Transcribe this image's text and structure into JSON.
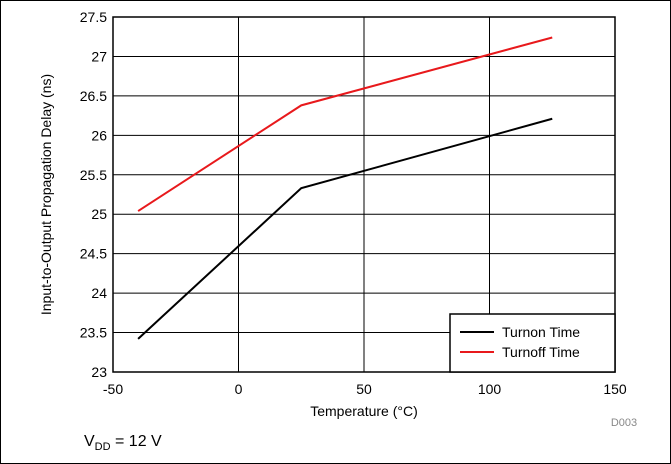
{
  "chart_data": {
    "type": "line",
    "xlabel": "Temperature (°C)",
    "ylabel": "Input-to-Output Propagation Delay (ns)",
    "xlim": [
      -50,
      150
    ],
    "ylim": [
      23,
      27.5
    ],
    "x_ticks": [
      "-50",
      "0",
      "50",
      "100",
      "150"
    ],
    "y_ticks": [
      "23",
      "23.5",
      "24",
      "24.5",
      "25",
      "25.5",
      "26",
      "26.5",
      "27",
      "27.5"
    ],
    "grid": true,
    "legend_position": "bottom-right",
    "series": [
      {
        "name": "Turnon Time",
        "color": "#000000",
        "x": [
          -40,
          25,
          125
        ],
        "y": [
          23.42,
          25.33,
          26.21
        ]
      },
      {
        "name": "Turnoff Time",
        "color": "#e8191c",
        "x": [
          -40,
          25,
          125
        ],
        "y": [
          25.04,
          26.38,
          27.24
        ]
      }
    ]
  },
  "figure_code": "D003",
  "condition": {
    "symbol": "V",
    "subscript": "DD",
    "value": " = 12 V"
  }
}
